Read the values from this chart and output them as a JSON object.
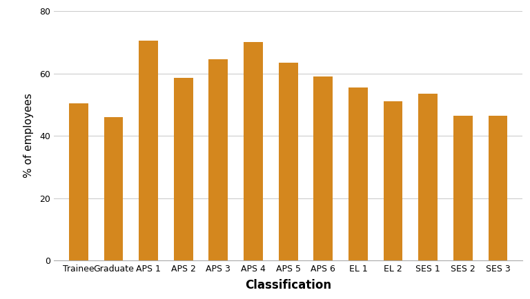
{
  "categories": [
    "Trainee",
    "Graduate",
    "APS 1",
    "APS 2",
    "APS 3",
    "APS 4",
    "APS 5",
    "APS 6",
    "EL 1",
    "EL 2",
    "SES 1",
    "SES 2",
    "SES 3"
  ],
  "values": [
    50.5,
    46.0,
    70.5,
    58.5,
    64.5,
    70.0,
    63.5,
    59.0,
    55.5,
    51.0,
    53.5,
    46.5,
    46.5
  ],
  "bar_color": "#D4871E",
  "xlabel": "Classification",
  "ylabel": "% of employees",
  "ylim": [
    0,
    80
  ],
  "yticks": [
    0,
    20,
    40,
    60,
    80
  ],
  "grid_color": "#cccccc",
  "background_color": "#ffffff",
  "xlabel_fontsize": 12,
  "ylabel_fontsize": 11,
  "tick_fontsize": 9,
  "bar_width": 0.55
}
